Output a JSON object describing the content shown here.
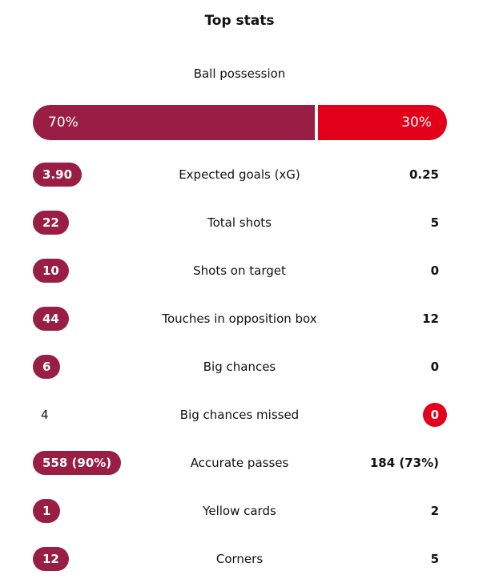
{
  "header": {
    "title": "Top stats"
  },
  "possession": {
    "label": "Ball possession",
    "home": "70%",
    "away": "30%",
    "home_color": "#981e43",
    "away_color": "#e2001a"
  },
  "rows": [
    {
      "label": "Expected goals (xG)",
      "home": "3.90",
      "away": "0.25",
      "highlight": "home"
    },
    {
      "label": "Total shots",
      "home": "22",
      "away": "5",
      "highlight": "home"
    },
    {
      "label": "Shots on target",
      "home": "10",
      "away": "0",
      "highlight": "home"
    },
    {
      "label": "Touches in opposition box",
      "home": "44",
      "away": "12",
      "highlight": "home"
    },
    {
      "label": "Big chances",
      "home": "6",
      "away": "0",
      "highlight": "home"
    },
    {
      "label": "Big chances missed",
      "home": "4",
      "away": "0",
      "highlight": "away"
    },
    {
      "label": "Accurate passes",
      "home": "558 (90%)",
      "away": "184 (73%)",
      "highlight": "home"
    },
    {
      "label": "Yellow cards",
      "home": "1",
      "away": "2",
      "highlight": "home"
    },
    {
      "label": "Corners",
      "home": "12",
      "away": "5",
      "highlight": "home"
    }
  ]
}
